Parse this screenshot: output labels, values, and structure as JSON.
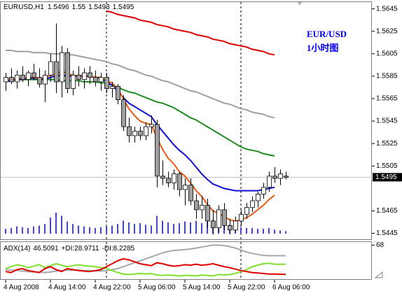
{
  "chart_data": {
    "type": "candlestick",
    "title": "EURUSD,H1",
    "annotations": [
      "EUR/USD",
      "1小时图"
    ],
    "categories": [
      "4 Aug 2008",
      null,
      null,
      null,
      null,
      null,
      null,
      null,
      "4 Aug 14:00",
      null,
      null,
      null,
      null,
      null,
      null,
      null,
      "4 Aug 22:00",
      null,
      null,
      null,
      null,
      null,
      null,
      null,
      "5 Aug 06:00",
      null,
      null,
      null,
      null,
      null,
      null,
      null,
      "5 Aug 14:00",
      null,
      null,
      null,
      null,
      null,
      null,
      null,
      "5 Aug 22:00",
      null,
      null,
      null,
      null,
      null,
      null,
      null,
      "6 Aug 06:00",
      null,
      null
    ],
    "ohlc": {
      "open": [
        1.558,
        1.5584,
        1.558,
        1.5586,
        1.5582,
        1.5588,
        1.5584,
        1.5578,
        1.5586,
        1.5598,
        1.558,
        1.5606,
        1.5574,
        1.5586,
        1.5582,
        1.5588,
        1.5584,
        1.558,
        1.5584,
        1.5574,
        1.5576,
        1.5564,
        1.554,
        1.5532,
        1.5536,
        1.5532,
        1.554,
        1.5542,
        1.5496,
        1.5494,
        1.549,
        1.5498,
        1.5484,
        1.5488,
        1.5474,
        1.5466,
        1.547,
        1.5456,
        1.545,
        1.5466,
        1.5452,
        1.5448,
        1.5456,
        1.5462,
        1.5468,
        1.5474,
        1.548,
        1.5486,
        1.5496,
        1.5494,
        1.5496
      ],
      "high": [
        1.5588,
        1.5592,
        1.559,
        1.5594,
        1.559,
        1.5596,
        1.5592,
        1.559,
        1.5605,
        1.5632,
        1.5612,
        1.561,
        1.559,
        1.5594,
        1.5592,
        1.5594,
        1.559,
        1.5588,
        1.5588,
        1.558,
        1.5578,
        1.5568,
        1.5548,
        1.554,
        1.554,
        1.5544,
        1.555,
        1.5546,
        1.551,
        1.55,
        1.5502,
        1.55,
        1.5494,
        1.5494,
        1.548,
        1.5478,
        1.5476,
        1.5466,
        1.547,
        1.5472,
        1.5458,
        1.546,
        1.5466,
        1.5472,
        1.5478,
        1.5482,
        1.549,
        1.55,
        1.5504,
        1.5502,
        1.55
      ],
      "low": [
        1.5572,
        1.5578,
        1.5574,
        1.558,
        1.5576,
        1.5582,
        1.5575,
        1.5562,
        1.558,
        1.557,
        1.5566,
        1.557,
        1.5568,
        1.5576,
        1.5574,
        1.5578,
        1.5576,
        1.5572,
        1.557,
        1.5566,
        1.556,
        1.5536,
        1.5526,
        1.5526,
        1.5528,
        1.5528,
        1.5534,
        1.5486,
        1.5488,
        1.5486,
        1.5484,
        1.5478,
        1.547,
        1.547,
        1.5458,
        1.5458,
        1.545,
        1.5444,
        1.5446,
        1.5448,
        1.5444,
        1.5446,
        1.5452,
        1.5458,
        1.5464,
        1.5468,
        1.5476,
        1.5482,
        1.549,
        1.5488,
        1.5493
      ],
      "close": [
        1.5584,
        1.558,
        1.5586,
        1.5582,
        1.5588,
        1.5584,
        1.5578,
        1.5586,
        1.5598,
        1.558,
        1.5606,
        1.5574,
        1.5586,
        1.5582,
        1.5588,
        1.5584,
        1.558,
        1.5584,
        1.5574,
        1.5576,
        1.5564,
        1.554,
        1.5532,
        1.5536,
        1.5532,
        1.554,
        1.5542,
        1.5496,
        1.5494,
        1.549,
        1.5498,
        1.5484,
        1.5488,
        1.5474,
        1.5466,
        1.547,
        1.5456,
        1.545,
        1.5466,
        1.5452,
        1.5448,
        1.5456,
        1.5462,
        1.5468,
        1.5474,
        1.548,
        1.5486,
        1.5496,
        1.5494,
        1.5498,
        1.5495
      ],
      "bull_color": "#ffffff",
      "bear_color": "#a0a0a0",
      "outline_color": "#000000"
    },
    "moving_averages": [
      {
        "color": "#e00000",
        "values": [
          null,
          null,
          null,
          null,
          null,
          null,
          null,
          null,
          null,
          null,
          null,
          null,
          null,
          null,
          null,
          null,
          null,
          null,
          1.5643,
          1.5642,
          1.564,
          1.5639,
          1.5638,
          1.5637,
          1.5635,
          1.5634,
          1.5633,
          1.5631,
          1.563,
          1.5629,
          1.5627,
          1.5626,
          1.5625,
          1.5624,
          1.5622,
          1.5621,
          1.562,
          1.5618,
          1.5617,
          1.5616,
          1.5614,
          1.5613,
          1.5612,
          1.5611,
          1.5609,
          1.5608,
          1.5607,
          1.5605,
          1.5604,
          null,
          null
        ]
      },
      {
        "color": "#a0a0a0",
        "values": [
          1.5608,
          1.5608,
          1.5607,
          1.5607,
          1.5607,
          1.5606,
          1.5606,
          1.5606,
          1.5605,
          1.5605,
          1.5605,
          1.5604,
          1.5604,
          1.5603,
          1.5602,
          1.5601,
          1.56,
          1.5599,
          1.5598,
          1.5596,
          1.5595,
          1.5593,
          1.5591,
          1.559,
          1.5588,
          1.5586,
          1.5585,
          1.5583,
          1.5581,
          1.558,
          1.5578,
          1.5576,
          1.5574,
          1.5572,
          1.5571,
          1.5569,
          1.5567,
          1.5565,
          1.5563,
          1.5561,
          1.556,
          1.5558,
          1.5556,
          1.5555,
          1.5553,
          1.5552,
          1.5551,
          1.5549,
          1.5548,
          null,
          null
        ]
      },
      {
        "color": "#1e8c1e",
        "values": [
          1.5582,
          1.5582,
          1.5582,
          1.5582,
          1.5582,
          1.5582,
          1.5582,
          1.5582,
          1.5582,
          1.5582,
          1.5581,
          1.5581,
          1.5581,
          1.5581,
          1.558,
          1.558,
          1.558,
          1.5579,
          1.5579,
          1.5577,
          1.5575,
          1.5573,
          1.5571,
          1.557,
          1.5568,
          1.5566,
          1.5564,
          1.5562,
          1.5561,
          1.5559,
          1.5557,
          1.5554,
          1.5551,
          1.5548,
          1.5546,
          1.5543,
          1.554,
          1.5537,
          1.5534,
          1.5531,
          1.5528,
          1.5525,
          1.5522,
          1.552,
          1.5519,
          1.5518,
          1.5516,
          1.5515,
          1.5514,
          null,
          null
        ]
      },
      {
        "color": "#1010d0",
        "values": [
          1.558,
          1.5581,
          1.5582,
          1.5582,
          1.5583,
          1.5583,
          1.5583,
          1.5582,
          1.5584,
          1.5585,
          1.5586,
          1.5585,
          1.5585,
          1.5585,
          1.5585,
          1.5585,
          1.5584,
          1.5583,
          1.558,
          1.5577,
          1.5572,
          1.5566,
          1.5561,
          1.5558,
          1.5555,
          1.5552,
          1.5549,
          1.5542,
          1.5536,
          1.553,
          1.5524,
          1.5519,
          1.5515,
          1.551,
          1.5504,
          1.5498,
          1.5493,
          1.5489,
          1.5487,
          1.5485,
          1.5484,
          1.5483,
          1.5483,
          1.5483,
          1.5483,
          1.5483,
          1.5484,
          1.5485,
          1.5486,
          null,
          null
        ]
      },
      {
        "color": "#e85a10",
        "values": [
          1.5582,
          1.5582,
          1.5583,
          1.5583,
          1.5584,
          1.5584,
          1.5583,
          1.5583,
          1.5586,
          1.5586,
          1.559,
          1.5587,
          1.5586,
          1.5585,
          1.5586,
          1.5585,
          1.5584,
          1.5584,
          1.5581,
          1.5579,
          1.5574,
          1.5565,
          1.5556,
          1.555,
          1.5545,
          1.5543,
          1.5542,
          1.553,
          1.552,
          1.5512,
          1.5507,
          1.55,
          1.5496,
          1.549,
          1.5483,
          1.5478,
          1.5471,
          1.5465,
          1.5463,
          1.546,
          1.5457,
          1.5456,
          1.5457,
          1.5459,
          1.5462,
          1.5466,
          1.547,
          1.5475,
          1.5479,
          null,
          null
        ]
      }
    ],
    "volume": {
      "color": "#0000ff",
      "values": [
        600,
        700,
        900,
        800,
        700,
        900,
        1000,
        1200,
        2000,
        2600,
        2200,
        1500,
        1200,
        1000,
        900,
        800,
        700,
        800,
        900,
        1000,
        1200,
        1600,
        1400,
        1200,
        1300,
        1100,
        1000,
        2200,
        1600,
        1400,
        1200,
        1300,
        1500,
        1400,
        1600,
        1300,
        1500,
        1700,
        1400,
        1200,
        1100,
        900,
        800,
        700,
        700,
        600,
        600,
        700,
        500,
        400,
        300
      ]
    },
    "ylim": [
      1.5441,
      1.5651
    ],
    "yticks": [
      1.5445,
      1.5465,
      1.5505,
      1.5525,
      1.5545,
      1.5565,
      1.5585,
      1.5605,
      1.5625,
      1.5645
    ],
    "price_line_color": "#c0c0c0",
    "adx": {
      "label": "ADX(14)",
      "ylim": [
        0,
        70
      ],
      "yticks": [
        68
      ],
      "series": [
        {
          "color": "#a8a8a8",
          "values": [
            18,
            17,
            16,
            15,
            14,
            13,
            13,
            12,
            13,
            15,
            16,
            17,
            17,
            17,
            16,
            16,
            15,
            15,
            16,
            18,
            20,
            24,
            28,
            32,
            36,
            40,
            44,
            48,
            52,
            55,
            57,
            58,
            59,
            60,
            62,
            64,
            66,
            68,
            68,
            67,
            65,
            62,
            58,
            54,
            51,
            49,
            47,
            46.5,
            46.5,
            46.5,
            46.5091
          ]
        },
        {
          "name": "+DI:",
          "color": "#7ee02a",
          "values": [
            20,
            24,
            28,
            26,
            22,
            25,
            28,
            22,
            26,
            30,
            27,
            24,
            26,
            28,
            26,
            25,
            24,
            22,
            20,
            16,
            12,
            9,
            8,
            9,
            10,
            9,
            10,
            7,
            6,
            7,
            6,
            5,
            6,
            6,
            5,
            7,
            6,
            5,
            8,
            7,
            8,
            10,
            14,
            18,
            24,
            27,
            30,
            31,
            29,
            29,
            28.9711
          ]
        },
        {
          "name": "-DI:",
          "color": "#e00000",
          "values": [
            14,
            12,
            18,
            20,
            16,
            14,
            12,
            20,
            24,
            18,
            14,
            20,
            18,
            16,
            15,
            14,
            16,
            18,
            24,
            30,
            36,
            40,
            38,
            34,
            30,
            28,
            26,
            32,
            30,
            27,
            25,
            26,
            28,
            27,
            29,
            27,
            28,
            30,
            27,
            24,
            22,
            19,
            16,
            14,
            12,
            11,
            10,
            9,
            9,
            8.5,
            8.2285
          ]
        }
      ]
    }
  }
}
